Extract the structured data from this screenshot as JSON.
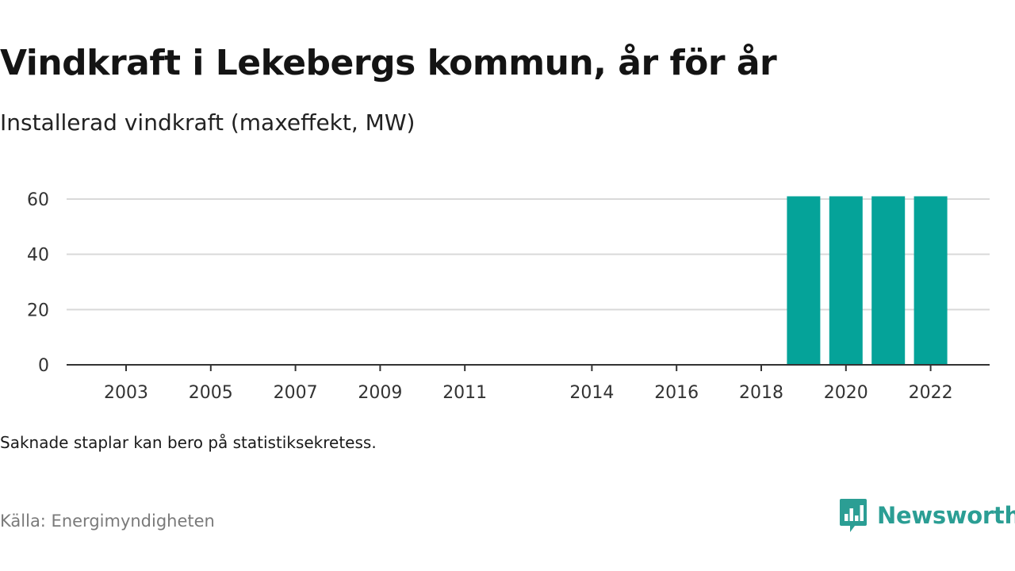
{
  "header": {
    "title": "Vindkraft i Lekebergs kommun, år för år",
    "subtitle": "Installerad vindkraft (maxeffekt, MW)"
  },
  "footer": {
    "note": "Saknade staplar kan bero på statistiksekretess.",
    "source": "Källa: Energimyndigheten",
    "brand": "Newsworthy",
    "brand_icon": "newsworthy-logo-icon"
  },
  "colors": {
    "bar": "#05a399",
    "brand": "#2b9e94",
    "grid": "#d9d9d9",
    "axis": "#333333"
  },
  "chart_data": {
    "type": "bar",
    "title": "Vindkraft i Lekebergs kommun, år för år",
    "subtitle": "Installerad vindkraft (maxeffekt, MW)",
    "xlabel": "",
    "ylabel": "",
    "categories": [
      "2002",
      "2003",
      "2004",
      "2005",
      "2006",
      "2007",
      "2008",
      "2009",
      "2010",
      "2011",
      "2013",
      "2014",
      "2015",
      "2016",
      "2017",
      "2018",
      "2019",
      "2020",
      "2021",
      "2022"
    ],
    "x_tick_labels": [
      "2003",
      "2005",
      "2007",
      "2009",
      "2011",
      "2014",
      "2016",
      "2018",
      "2020",
      "2022"
    ],
    "values": [
      0,
      0,
      0,
      0,
      0,
      0,
      0,
      0,
      0,
      0,
      0,
      0,
      0,
      0,
      0,
      0,
      61,
      61,
      61,
      61
    ],
    "ylim": [
      0,
      60
    ],
    "yticks": [
      0,
      20,
      40,
      60
    ],
    "grid": true,
    "legend": "none"
  }
}
